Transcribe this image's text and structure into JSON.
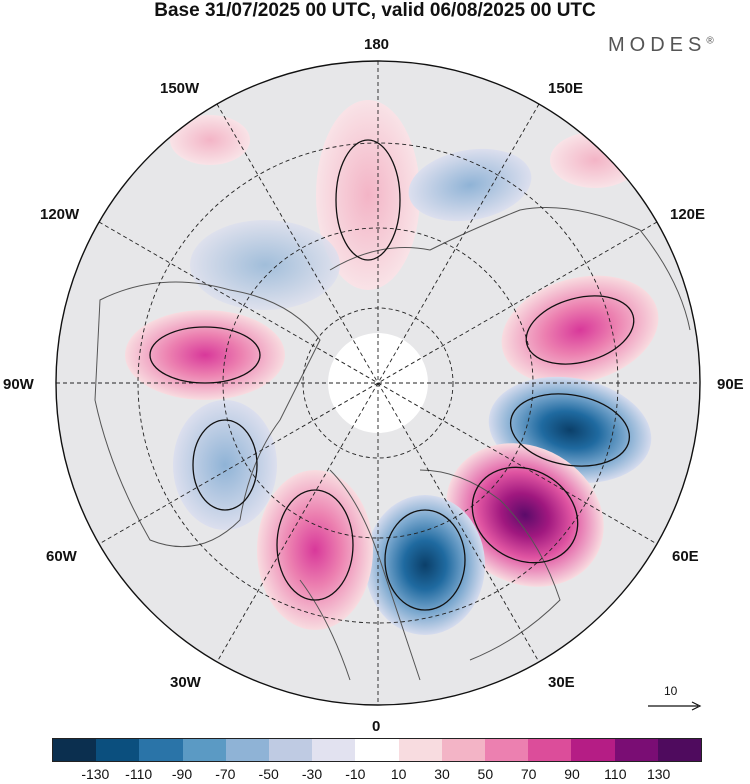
{
  "header": {
    "title": "Base 31/07/2025 00 UTC, valid 06/08/2025 00 UTC",
    "brand": "MODES",
    "brand_mark": "®"
  },
  "longitude_labels": {
    "lon_180": "180",
    "lon_150e": "150E",
    "lon_120e": "120E",
    "lon_90e": "90E",
    "lon_60e": "60E",
    "lon_30e": "30E",
    "lon_0": "0",
    "lon_30w": "30W",
    "lon_60w": "60W",
    "lon_90w": "90W",
    "lon_120w": "120W",
    "lon_150w": "150W"
  },
  "reference_vector": {
    "label": "10"
  },
  "colorbar": {
    "ticks": [
      "-130",
      "-110",
      "-90",
      "-70",
      "-50",
      "-30",
      "-10",
      "10",
      "30",
      "50",
      "70",
      "90",
      "110",
      "130"
    ],
    "colors": [
      "#0b2f4f",
      "#0b4f7e",
      "#2a74a8",
      "#5b9ac4",
      "#8fb3d6",
      "#bfcbe3",
      "#e2e2f0",
      "#ffffff",
      "#f8dce0",
      "#f3b4c6",
      "#ec80b0",
      "#dc4d9a",
      "#b51d85",
      "#7a0d74",
      "#4f0b5e"
    ]
  }
}
